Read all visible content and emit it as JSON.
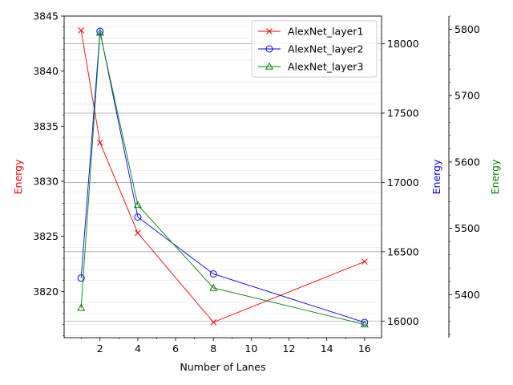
{
  "chart_data": {
    "type": "line",
    "xlabel": "Number of Lanes",
    "x": [
      1,
      2,
      4,
      8,
      16
    ],
    "xlim": [
      0.1,
      16.9
    ],
    "xticks": [
      2,
      4,
      6,
      8,
      10,
      12,
      14,
      16
    ],
    "grid": true,
    "legend_position": "top-right",
    "series": [
      {
        "name": "AlexNet_layer1",
        "axis": "left",
        "color": "#ff0000",
        "marker": "x",
        "values": [
          3843.7,
          3833.5,
          3825.3,
          3817.2,
          3822.7
        ]
      },
      {
        "name": "AlexNet_layer2",
        "axis": "right1",
        "color": "#0000ff",
        "marker": "circle",
        "values": [
          16310,
          18090,
          16750,
          16340,
          15990
        ]
      },
      {
        "name": "AlexNet_layer3",
        "axis": "right2",
        "color": "#008000",
        "marker": "triangle",
        "values": [
          5380,
          5795,
          5535,
          5410,
          5355
        ]
      }
    ],
    "axes": {
      "left": {
        "label": "Energy",
        "color": "#ff0000",
        "ylim": [
          3815.8,
          3845.0
        ],
        "ticks": [
          3820,
          3825,
          3830,
          3835,
          3840,
          3845
        ]
      },
      "right1": {
        "label": "Energy",
        "color": "#0000ff",
        "ylim": [
          15880,
          18200
        ],
        "ticks": [
          16000,
          16500,
          17000,
          17500,
          18000
        ]
      },
      "right2": {
        "label": "Energy",
        "color": "#008000",
        "ylim": [
          5335,
          5820
        ],
        "ticks": [
          5400,
          5500,
          5600,
          5700,
          5800
        ]
      }
    }
  }
}
